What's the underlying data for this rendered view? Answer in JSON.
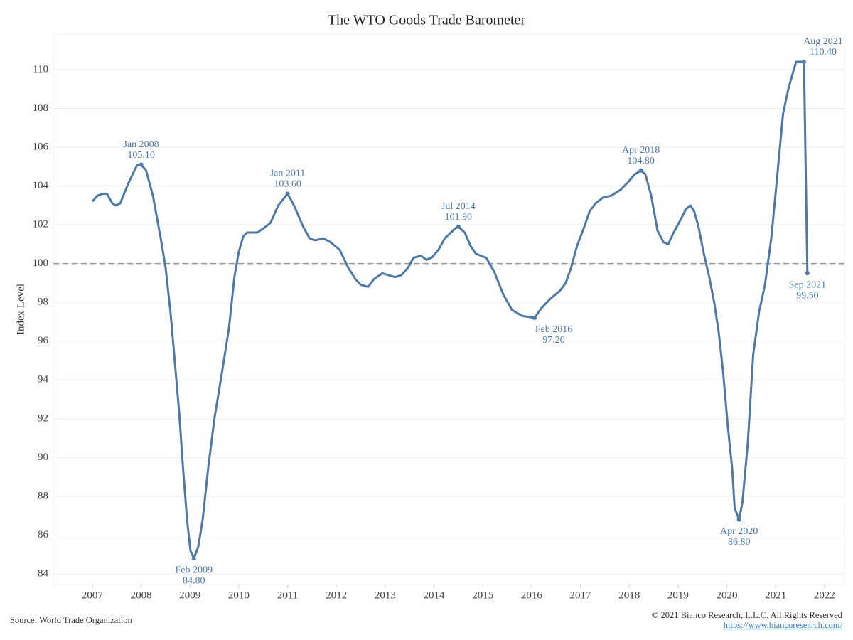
{
  "chart_data": {
    "type": "line",
    "title": "The WTO Goods Trade Barometer",
    "y_label": "Index Level",
    "source": "Source: World Trade Organization",
    "copyright": "© 2021 Bianco Research, L.L.C. All Rights Reserved",
    "url": "https://www.biancoresearch.com/",
    "color": "#4e79a7",
    "reference_line": 100,
    "grid": true,
    "xlim": [
      2006.2,
      2022.41
    ],
    "ylim": [
      83.45,
      111.83
    ],
    "xticks": [
      2007,
      2008,
      2009,
      2010,
      2011,
      2012,
      2013,
      2014,
      2015,
      2016,
      2017,
      2018,
      2019,
      2020,
      2021,
      2022
    ],
    "yticks": [
      84,
      86,
      88,
      90,
      92,
      94,
      96,
      98,
      100,
      102,
      104,
      106,
      108,
      110
    ],
    "x": [
      2007.0,
      2007.1,
      2007.22,
      2007.3,
      2007.41,
      2007.48,
      2007.57,
      2007.73,
      2007.92,
      2008.0,
      2008.1,
      2008.24,
      2008.4,
      2008.5,
      2008.6,
      2008.69,
      2008.78,
      2008.86,
      2008.94,
      2009.01,
      2009.08,
      2009.17,
      2009.26,
      2009.37,
      2009.5,
      2009.65,
      2009.8,
      2009.91,
      2010.0,
      2010.09,
      2010.17,
      2010.38,
      2010.5,
      2010.65,
      2010.81,
      2011.0,
      2011.13,
      2011.32,
      2011.45,
      2011.57,
      2011.73,
      2011.88,
      2012.07,
      2012.24,
      2012.39,
      2012.5,
      2012.65,
      2012.77,
      2012.94,
      2013.07,
      2013.2,
      2013.33,
      2013.47,
      2013.58,
      2013.73,
      2013.84,
      2013.95,
      2014.09,
      2014.22,
      2014.43,
      2014.5,
      2014.63,
      2014.75,
      2014.86,
      2015.07,
      2015.23,
      2015.42,
      2015.6,
      2015.81,
      2016.06,
      2016.2,
      2016.39,
      2016.58,
      2016.7,
      2016.81,
      2016.93,
      2017.08,
      2017.19,
      2017.31,
      2017.46,
      2017.63,
      2017.82,
      2017.98,
      2018.11,
      2018.24,
      2018.33,
      2018.45,
      2018.58,
      2018.7,
      2018.8,
      2018.91,
      2019.06,
      2019.16,
      2019.25,
      2019.33,
      2019.42,
      2019.52,
      2019.64,
      2019.74,
      2019.83,
      2019.92,
      2020.02,
      2020.11,
      2020.16,
      2020.25,
      2020.32,
      2020.43,
      2020.54,
      2020.66,
      2020.78,
      2020.91,
      2021.02,
      2021.15,
      2021.26,
      2021.36,
      2021.42,
      2021.58,
      2021.65
    ],
    "values": [
      103.2,
      103.5,
      103.6,
      103.6,
      103.1,
      103.0,
      103.1,
      104.1,
      105.1,
      105.1,
      104.8,
      103.5,
      101.3,
      99.8,
      97.5,
      94.9,
      92.3,
      89.4,
      86.8,
      85.2,
      84.8,
      85.4,
      86.8,
      89.4,
      92.0,
      94.3,
      96.7,
      99.3,
      100.6,
      101.4,
      101.6,
      101.6,
      101.8,
      102.1,
      103.0,
      103.6,
      103.0,
      101.9,
      101.3,
      101.2,
      101.3,
      101.1,
      100.7,
      99.8,
      99.2,
      98.9,
      98.8,
      99.2,
      99.5,
      99.4,
      99.3,
      99.4,
      99.8,
      100.3,
      100.4,
      100.2,
      100.3,
      100.7,
      101.3,
      101.8,
      101.9,
      101.6,
      100.9,
      100.5,
      100.3,
      99.6,
      98.4,
      97.6,
      97.3,
      97.2,
      97.7,
      98.2,
      98.6,
      99.0,
      99.8,
      100.9,
      101.9,
      102.7,
      103.1,
      103.4,
      103.5,
      103.8,
      104.2,
      104.6,
      104.8,
      104.6,
      103.5,
      101.7,
      101.1,
      101.0,
      101.6,
      102.3,
      102.8,
      103.0,
      102.7,
      101.9,
      100.6,
      99.3,
      98.0,
      96.5,
      94.5,
      91.6,
      89.4,
      87.4,
      86.8,
      87.7,
      90.8,
      95.3,
      97.5,
      98.9,
      101.3,
      104.2,
      107.7,
      109.0,
      109.9,
      110.4,
      110.4,
      99.5
    ],
    "annotations": [
      {
        "text": "Jan 2008",
        "x": 2008.0,
        "value": 105.1,
        "value_label": "105.10",
        "position": "above"
      },
      {
        "text": "Feb 2009",
        "x": 2009.08,
        "value": 84.8,
        "value_label": "84.80",
        "position": "below"
      },
      {
        "text": "Jan 2011",
        "x": 2011.0,
        "value": 103.6,
        "value_label": "103.60",
        "position": "above"
      },
      {
        "text": "Jul 2014",
        "x": 2014.5,
        "value": 101.9,
        "value_label": "101.90",
        "position": "above"
      },
      {
        "text": "Feb 2016",
        "x": 2016.06,
        "value": 97.2,
        "value_label": "97.20",
        "position": "below-right"
      },
      {
        "text": "Apr 2018",
        "x": 2018.24,
        "value": 104.8,
        "value_label": "104.80",
        "position": "above"
      },
      {
        "text": "Apr 2020",
        "x": 2020.25,
        "value": 86.8,
        "value_label": "86.80",
        "position": "below"
      },
      {
        "text": "Aug 2021",
        "x": 2021.58,
        "value": 110.4,
        "value_label": "110.40",
        "position": "above-right"
      },
      {
        "text": "Sep 2021",
        "x": 2021.65,
        "value": 99.5,
        "value_label": "99.50",
        "position": "below"
      }
    ]
  }
}
